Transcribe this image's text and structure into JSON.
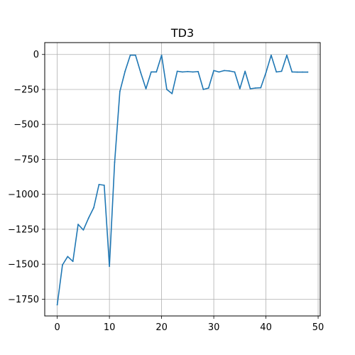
{
  "chart_data": {
    "type": "line",
    "title": "TD3",
    "xlabel": "",
    "ylabel": "",
    "xlim": [
      -2.4,
      50.4
    ],
    "ylim": [
      -1870,
      85
    ],
    "x_ticks": [
      0,
      10,
      20,
      30,
      40,
      50
    ],
    "x_tick_labels": [
      "0",
      "10",
      "20",
      "30",
      "40",
      "50"
    ],
    "y_ticks": [
      0,
      -250,
      -500,
      -750,
      -1000,
      -1250,
      -1500,
      -1750
    ],
    "y_tick_labels": [
      "0",
      "−250",
      "−500",
      "−750",
      "−1000",
      "−1250",
      "−1500",
      "−1750"
    ],
    "grid": true,
    "legend": "none",
    "series": [
      {
        "color": "#1f77b4",
        "x": [
          0,
          1,
          2,
          3,
          4,
          5,
          6,
          7,
          8,
          9,
          10,
          11,
          12,
          13,
          14,
          15,
          16,
          17,
          18,
          19,
          20,
          21,
          22,
          23,
          24,
          25,
          26,
          27,
          28,
          29,
          30,
          31,
          32,
          33,
          34,
          35,
          36,
          37,
          38,
          39,
          40,
          41,
          42,
          43,
          44,
          45,
          46,
          47,
          48
        ],
        "y": [
          -1790,
          -1505,
          -1445,
          -1480,
          -1215,
          -1255,
          -1170,
          -1095,
          -930,
          -935,
          -1515,
          -770,
          -265,
          -120,
          -5,
          -5,
          -130,
          -245,
          -125,
          -125,
          -5,
          -250,
          -280,
          -120,
          -125,
          -122,
          -125,
          -122,
          -250,
          -240,
          -115,
          -125,
          -115,
          -118,
          -125,
          -245,
          -120,
          -245,
          -240,
          -238,
          -130,
          -5,
          -125,
          -120,
          -5,
          -125,
          -126,
          -126,
          -126
        ]
      }
    ]
  }
}
